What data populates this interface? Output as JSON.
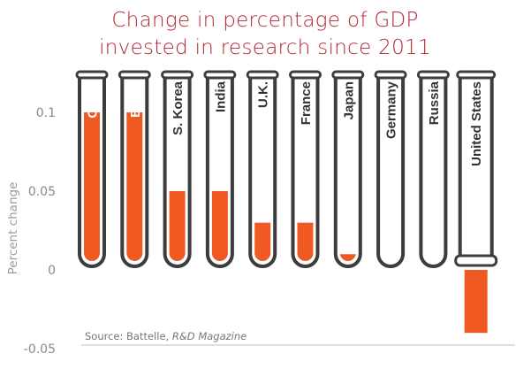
{
  "chart_data": {
    "type": "bar",
    "title_lines": [
      "Change in percentage of GDP",
      "invested in research since 2011"
    ],
    "ylabel": "Percent change",
    "xlabel": "",
    "categories": [
      "China",
      "Brazil",
      "S. Korea",
      "India",
      "U.K.",
      "France",
      "Japan",
      "Germany",
      "Russia",
      "United States"
    ],
    "values": [
      0.1,
      0.1,
      0.05,
      0.05,
      0.03,
      0.03,
      0.01,
      0,
      0,
      -0.04
    ],
    "ylim": [
      -0.05,
      0.1
    ],
    "yticks": [
      0.1,
      0.05,
      0,
      -0.05
    ],
    "ytick_labels": [
      "0.1",
      "0.05",
      "0",
      "-0.05"
    ],
    "grid": false,
    "source_prefix": "Source: Battelle, ",
    "source_italic": "R&D Magazine",
    "colors": {
      "bar": "#f05a22",
      "tube_outline": "#3d3d3d",
      "title": "#b3262f",
      "label_on_bar": "#ffffff",
      "label_default": "#333333",
      "axis_text": "#8a8a8a"
    }
  }
}
